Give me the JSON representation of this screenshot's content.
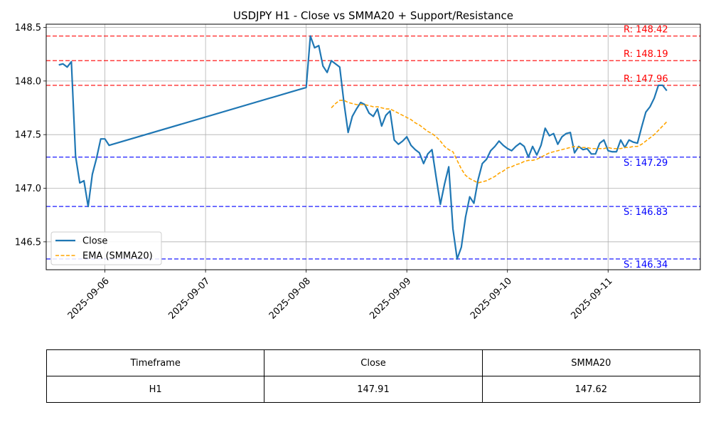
{
  "chart_data": {
    "type": "line",
    "title": "USDJPY H1 - Close vs SMMA20 + Support/Resistance",
    "xlabel": "",
    "ylabel": "",
    "x_ticks": [
      "2025-09-06",
      "2025-09-07",
      "2025-09-08",
      "2025-09-09",
      "2025-09-10",
      "2025-09-11"
    ],
    "y_ticks": [
      146.5,
      147.0,
      147.5,
      148.0,
      148.5
    ],
    "ylim": [
      146.24,
      148.53
    ],
    "xlim": [
      "2025-09-05 10:00",
      "2025-09-11 22:00"
    ],
    "grid": true,
    "legend": "lower-left",
    "series": [
      {
        "name": "Close",
        "color": "#1f77b4",
        "style": "solid",
        "points": [
          [
            "2025-09-05 13:00",
            148.15
          ],
          [
            "2025-09-05 14:00",
            148.16
          ],
          [
            "2025-09-05 15:00",
            148.13
          ],
          [
            "2025-09-05 16:00",
            148.18
          ],
          [
            "2025-09-05 17:00",
            147.3
          ],
          [
            "2025-09-05 18:00",
            147.05
          ],
          [
            "2025-09-05 19:00",
            147.07
          ],
          [
            "2025-09-05 20:00",
            146.83
          ],
          [
            "2025-09-05 21:00",
            147.13
          ],
          [
            "2025-09-05 22:00",
            147.28
          ],
          [
            "2025-09-05 23:00",
            147.46
          ],
          [
            "2025-09-06 00:00",
            147.46
          ],
          [
            "2025-09-06 01:00",
            147.4
          ],
          [
            "2025-09-08 00:00",
            147.94
          ],
          [
            "2025-09-08 01:00",
            148.42
          ],
          [
            "2025-09-08 02:00",
            148.31
          ],
          [
            "2025-09-08 03:00",
            148.33
          ],
          [
            "2025-09-08 04:00",
            148.14
          ],
          [
            "2025-09-08 05:00",
            148.08
          ],
          [
            "2025-09-08 06:00",
            148.19
          ],
          [
            "2025-09-08 07:00",
            148.16
          ],
          [
            "2025-09-08 08:00",
            148.13
          ],
          [
            "2025-09-08 09:00",
            147.8
          ],
          [
            "2025-09-08 10:00",
            147.52
          ],
          [
            "2025-09-08 11:00",
            147.67
          ],
          [
            "2025-09-08 12:00",
            147.74
          ],
          [
            "2025-09-08 13:00",
            147.8
          ],
          [
            "2025-09-08 14:00",
            147.78
          ],
          [
            "2025-09-08 15:00",
            147.7
          ],
          [
            "2025-09-08 16:00",
            147.67
          ],
          [
            "2025-09-08 17:00",
            147.74
          ],
          [
            "2025-09-08 18:00",
            147.58
          ],
          [
            "2025-09-08 19:00",
            147.68
          ],
          [
            "2025-09-08 20:00",
            147.72
          ],
          [
            "2025-09-08 21:00",
            147.45
          ],
          [
            "2025-09-08 22:00",
            147.41
          ],
          [
            "2025-09-08 23:00",
            147.44
          ],
          [
            "2025-09-09 00:00",
            147.48
          ],
          [
            "2025-09-09 01:00",
            147.4
          ],
          [
            "2025-09-09 02:00",
            147.36
          ],
          [
            "2025-09-09 03:00",
            147.33
          ],
          [
            "2025-09-09 04:00",
            147.23
          ],
          [
            "2025-09-09 05:00",
            147.32
          ],
          [
            "2025-09-09 06:00",
            147.36
          ],
          [
            "2025-09-09 07:00",
            147.1
          ],
          [
            "2025-09-09 08:00",
            146.85
          ],
          [
            "2025-09-09 09:00",
            147.04
          ],
          [
            "2025-09-09 10:00",
            147.2
          ],
          [
            "2025-09-09 11:00",
            146.62
          ],
          [
            "2025-09-09 12:00",
            146.34
          ],
          [
            "2025-09-09 13:00",
            146.45
          ],
          [
            "2025-09-09 14:00",
            146.73
          ],
          [
            "2025-09-09 15:00",
            146.92
          ],
          [
            "2025-09-09 16:00",
            146.86
          ],
          [
            "2025-09-09 17:00",
            147.08
          ],
          [
            "2025-09-09 18:00",
            147.23
          ],
          [
            "2025-09-09 19:00",
            147.27
          ],
          [
            "2025-09-09 20:00",
            147.35
          ],
          [
            "2025-09-09 21:00",
            147.39
          ],
          [
            "2025-09-09 22:00",
            147.44
          ],
          [
            "2025-09-09 23:00",
            147.4
          ],
          [
            "2025-09-10 00:00",
            147.37
          ],
          [
            "2025-09-10 01:00",
            147.35
          ],
          [
            "2025-09-10 02:00",
            147.39
          ],
          [
            "2025-09-10 03:00",
            147.42
          ],
          [
            "2025-09-10 04:00",
            147.39
          ],
          [
            "2025-09-10 05:00",
            147.29
          ],
          [
            "2025-09-10 06:00",
            147.39
          ],
          [
            "2025-09-10 07:00",
            147.31
          ],
          [
            "2025-09-10 08:00",
            147.4
          ],
          [
            "2025-09-10 09:00",
            147.56
          ],
          [
            "2025-09-10 10:00",
            147.49
          ],
          [
            "2025-09-10 11:00",
            147.51
          ],
          [
            "2025-09-10 12:00",
            147.41
          ],
          [
            "2025-09-10 13:00",
            147.48
          ],
          [
            "2025-09-10 14:00",
            147.51
          ],
          [
            "2025-09-10 15:00",
            147.52
          ],
          [
            "2025-09-10 16:00",
            147.33
          ],
          [
            "2025-09-10 17:00",
            147.39
          ],
          [
            "2025-09-10 18:00",
            147.36
          ],
          [
            "2025-09-10 19:00",
            147.37
          ],
          [
            "2025-09-10 20:00",
            147.32
          ],
          [
            "2025-09-10 21:00",
            147.32
          ],
          [
            "2025-09-10 22:00",
            147.42
          ],
          [
            "2025-09-10 23:00",
            147.45
          ],
          [
            "2025-09-11 00:00",
            147.35
          ],
          [
            "2025-09-11 01:00",
            147.34
          ],
          [
            "2025-09-11 02:00",
            147.34
          ],
          [
            "2025-09-11 03:00",
            147.45
          ],
          [
            "2025-09-11 04:00",
            147.38
          ],
          [
            "2025-09-11 05:00",
            147.45
          ],
          [
            "2025-09-11 06:00",
            147.43
          ],
          [
            "2025-09-11 07:00",
            147.42
          ],
          [
            "2025-09-11 08:00",
            147.57
          ],
          [
            "2025-09-11 09:00",
            147.71
          ],
          [
            "2025-09-11 10:00",
            147.76
          ],
          [
            "2025-09-11 11:00",
            147.84
          ],
          [
            "2025-09-11 12:00",
            147.96
          ],
          [
            "2025-09-11 13:00",
            147.96
          ],
          [
            "2025-09-11 14:00",
            147.91
          ]
        ]
      },
      {
        "name": "EMA (SMMA20)",
        "color": "#ffa500",
        "style": "dashed",
        "points": [
          [
            "2025-09-08 06:00",
            147.75
          ],
          [
            "2025-09-08 07:00",
            147.79
          ],
          [
            "2025-09-08 08:00",
            147.82
          ],
          [
            "2025-09-08 09:00",
            147.82
          ],
          [
            "2025-09-08 10:00",
            147.8
          ],
          [
            "2025-09-08 11:00",
            147.79
          ],
          [
            "2025-09-08 12:00",
            147.78
          ],
          [
            "2025-09-08 13:00",
            147.78
          ],
          [
            "2025-09-08 14:00",
            147.78
          ],
          [
            "2025-09-08 15:00",
            147.77
          ],
          [
            "2025-09-08 16:00",
            147.76
          ],
          [
            "2025-09-08 17:00",
            147.76
          ],
          [
            "2025-09-08 18:00",
            147.75
          ],
          [
            "2025-09-08 19:00",
            147.74
          ],
          [
            "2025-09-08 20:00",
            147.74
          ],
          [
            "2025-09-08 21:00",
            147.72
          ],
          [
            "2025-09-08 22:00",
            147.7
          ],
          [
            "2025-09-08 23:00",
            147.68
          ],
          [
            "2025-09-09 00:00",
            147.66
          ],
          [
            "2025-09-09 01:00",
            147.64
          ],
          [
            "2025-09-09 02:00",
            147.61
          ],
          [
            "2025-09-09 03:00",
            147.59
          ],
          [
            "2025-09-09 04:00",
            147.56
          ],
          [
            "2025-09-09 05:00",
            147.53
          ],
          [
            "2025-09-09 06:00",
            147.51
          ],
          [
            "2025-09-09 07:00",
            147.48
          ],
          [
            "2025-09-09 08:00",
            147.44
          ],
          [
            "2025-09-09 09:00",
            147.39
          ],
          [
            "2025-09-09 10:00",
            147.36
          ],
          [
            "2025-09-09 11:00",
            147.34
          ],
          [
            "2025-09-09 12:00",
            147.26
          ],
          [
            "2025-09-09 13:00",
            147.18
          ],
          [
            "2025-09-09 14:00",
            147.12
          ],
          [
            "2025-09-09 15:00",
            147.09
          ],
          [
            "2025-09-09 16:00",
            147.07
          ],
          [
            "2025-09-09 17:00",
            147.05
          ],
          [
            "2025-09-09 18:00",
            147.06
          ],
          [
            "2025-09-09 19:00",
            147.07
          ],
          [
            "2025-09-09 20:00",
            147.09
          ],
          [
            "2025-09-09 21:00",
            147.11
          ],
          [
            "2025-09-09 22:00",
            147.14
          ],
          [
            "2025-09-09 23:00",
            147.16
          ],
          [
            "2025-09-10 00:00",
            147.19
          ],
          [
            "2025-09-10 01:00",
            147.2
          ],
          [
            "2025-09-10 02:00",
            147.22
          ],
          [
            "2025-09-10 03:00",
            147.23
          ],
          [
            "2025-09-10 04:00",
            147.25
          ],
          [
            "2025-09-10 05:00",
            147.26
          ],
          [
            "2025-09-10 06:00",
            147.26
          ],
          [
            "2025-09-10 07:00",
            147.27
          ],
          [
            "2025-09-10 08:00",
            147.29
          ],
          [
            "2025-09-10 09:00",
            147.31
          ],
          [
            "2025-09-10 10:00",
            147.33
          ],
          [
            "2025-09-10 11:00",
            147.34
          ],
          [
            "2025-09-10 12:00",
            147.35
          ],
          [
            "2025-09-10 13:00",
            147.36
          ],
          [
            "2025-09-10 14:00",
            147.37
          ],
          [
            "2025-09-10 15:00",
            147.38
          ],
          [
            "2025-09-10 16:00",
            147.39
          ],
          [
            "2025-09-10 17:00",
            147.38
          ],
          [
            "2025-09-10 18:00",
            147.38
          ],
          [
            "2025-09-10 19:00",
            147.38
          ],
          [
            "2025-09-10 20:00",
            147.37
          ],
          [
            "2025-09-10 21:00",
            147.37
          ],
          [
            "2025-09-10 22:00",
            147.37
          ],
          [
            "2025-09-10 23:00",
            147.37
          ],
          [
            "2025-09-11 00:00",
            147.38
          ],
          [
            "2025-09-11 01:00",
            147.37
          ],
          [
            "2025-09-11 02:00",
            147.37
          ],
          [
            "2025-09-11 03:00",
            147.37
          ],
          [
            "2025-09-11 04:00",
            147.38
          ],
          [
            "2025-09-11 05:00",
            147.38
          ],
          [
            "2025-09-11 06:00",
            147.39
          ],
          [
            "2025-09-11 07:00",
            147.39
          ],
          [
            "2025-09-11 08:00",
            147.41
          ],
          [
            "2025-09-11 09:00",
            147.44
          ],
          [
            "2025-09-11 10:00",
            147.47
          ],
          [
            "2025-09-11 11:00",
            147.5
          ],
          [
            "2025-09-11 12:00",
            147.54
          ],
          [
            "2025-09-11 13:00",
            147.58
          ],
          [
            "2025-09-11 14:00",
            147.62
          ]
        ]
      }
    ],
    "levels": [
      {
        "kind": "resistance",
        "value": 148.42,
        "label": "R: 148.42",
        "color": "#ff0000"
      },
      {
        "kind": "resistance",
        "value": 148.19,
        "label": "R: 148.19",
        "color": "#ff0000"
      },
      {
        "kind": "resistance",
        "value": 147.96,
        "label": "R: 147.96",
        "color": "#ff0000"
      },
      {
        "kind": "support",
        "value": 147.29,
        "label": "S: 147.29",
        "color": "#0000ff"
      },
      {
        "kind": "support",
        "value": 146.83,
        "label": "S: 146.83",
        "color": "#0000ff"
      },
      {
        "kind": "support",
        "value": 146.34,
        "label": "S: 146.34",
        "color": "#0000ff"
      }
    ]
  },
  "table": {
    "headers": [
      "Timeframe",
      "Close",
      "SMMA20"
    ],
    "row": [
      "H1",
      "147.91",
      "147.62"
    ]
  }
}
